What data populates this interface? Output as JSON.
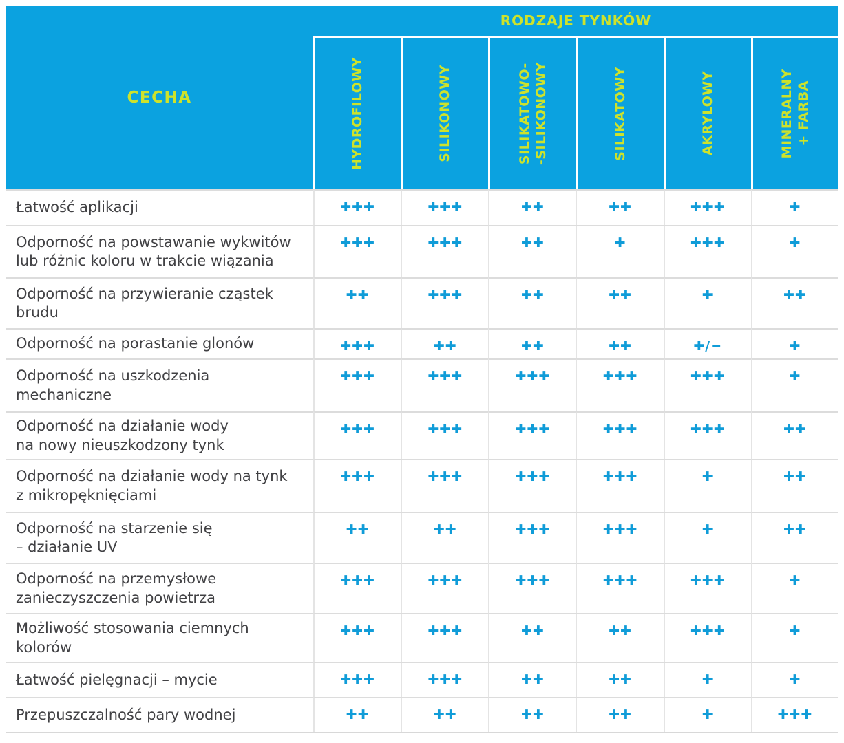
{
  "chart_data": {
    "type": "table",
    "title": "RODZAJE TYNKÓW",
    "corner_header": "CECHA",
    "columns": [
      "HYDROFILOWY",
      "SILIKONOWY",
      "SILIKATOWO-SILIKONOWY",
      "SILIKATOWY",
      "AKRYLOWY",
      "MINERALNY + FARBA"
    ],
    "column_display": [
      "HYDROFILOWY",
      "SILIKONOWY",
      "SILIKATOWO-\n-SILIKONOWY",
      "SILIKATOWY",
      "AKRYLOWY",
      "MINERALNY\n+ FARBA"
    ],
    "rating_scale": [
      "+",
      "++",
      "+++",
      "+/-"
    ],
    "rows": [
      {
        "feature": "Łatwość aplikacji",
        "ratings": [
          "+++",
          "+++",
          "++",
          "++",
          "+++",
          "+"
        ]
      },
      {
        "feature": "Odporność na powstawanie wykwitów lub różnic koloru w trakcie wiązania",
        "feature_display": "Odporność na powstawanie wykwitów\nlub różnic koloru w trakcie wiązania",
        "ratings": [
          "+++",
          "+++",
          "++",
          "+",
          "+++",
          "+"
        ]
      },
      {
        "feature": "Odporność na przywieranie cząstek brudu",
        "feature_display": "Odporność na przywieranie cząstek\nbrudu",
        "ratings": [
          "++",
          "+++",
          "++",
          "++",
          "+",
          "++"
        ]
      },
      {
        "feature": "Odporność na porastanie glonów",
        "ratings": [
          "+++",
          "++",
          "++",
          "++",
          "+/-",
          "+"
        ]
      },
      {
        "feature": "Odporność na uszkodzenia mechaniczne",
        "feature_display": "Odporność na uszkodzenia\nmechaniczne",
        "ratings": [
          "+++",
          "+++",
          "+++",
          "+++",
          "+++",
          "+"
        ]
      },
      {
        "feature": "Odporność na działanie wody na nowy nieuszkodzony tynk",
        "feature_display": "Odporność na działanie wody\nna nowy nieuszkodzony tynk",
        "ratings": [
          "+++",
          "+++",
          "+++",
          "+++",
          "+++",
          "++"
        ]
      },
      {
        "feature": "Odporność na działanie wody na tynk z mikropęknięciami",
        "feature_display": "Odporność na działanie wody na tynk\nz mikropęknięciami",
        "ratings": [
          "+++",
          "+++",
          "+++",
          "+++",
          "+",
          "++"
        ]
      },
      {
        "feature": "Odporność na starzenie się – działanie UV",
        "feature_display": "Odporność na starzenie się\n– działanie UV",
        "ratings": [
          "++",
          "++",
          "+++",
          "+++",
          "+",
          "++"
        ]
      },
      {
        "feature": "Odporność na przemysłowe zanieczyszczenia powietrza",
        "feature_display": "Odporność na przemysłowe\nzanieczyszczenia powietrza",
        "ratings": [
          "+++",
          "+++",
          "+++",
          "+++",
          "+++",
          "+"
        ]
      },
      {
        "feature": "Możliwość stosowania ciemnych kolorów",
        "feature_display": "Możliwość stosowania ciemnych\nkolorów",
        "ratings": [
          "+++",
          "+++",
          "++",
          "++",
          "+++",
          "+"
        ]
      },
      {
        "feature": "Łatwość pielęgnacji – mycie",
        "ratings": [
          "+++",
          "+++",
          "++",
          "++",
          "+",
          "+"
        ]
      },
      {
        "feature": "Przepuszczalność pary wodnej",
        "ratings": [
          "++",
          "++",
          "++",
          "++",
          "+",
          "+++"
        ]
      }
    ]
  },
  "colors": {
    "header_background": "#0ba2e0",
    "header_text": "#cde22c",
    "rating_plus": "#109cd8",
    "feature_text": "#414144",
    "grid_line": "#dcdcdc"
  },
  "icons": {
    "plus_glyph": "✚",
    "plus_minus_glyph": "✚/−"
  }
}
